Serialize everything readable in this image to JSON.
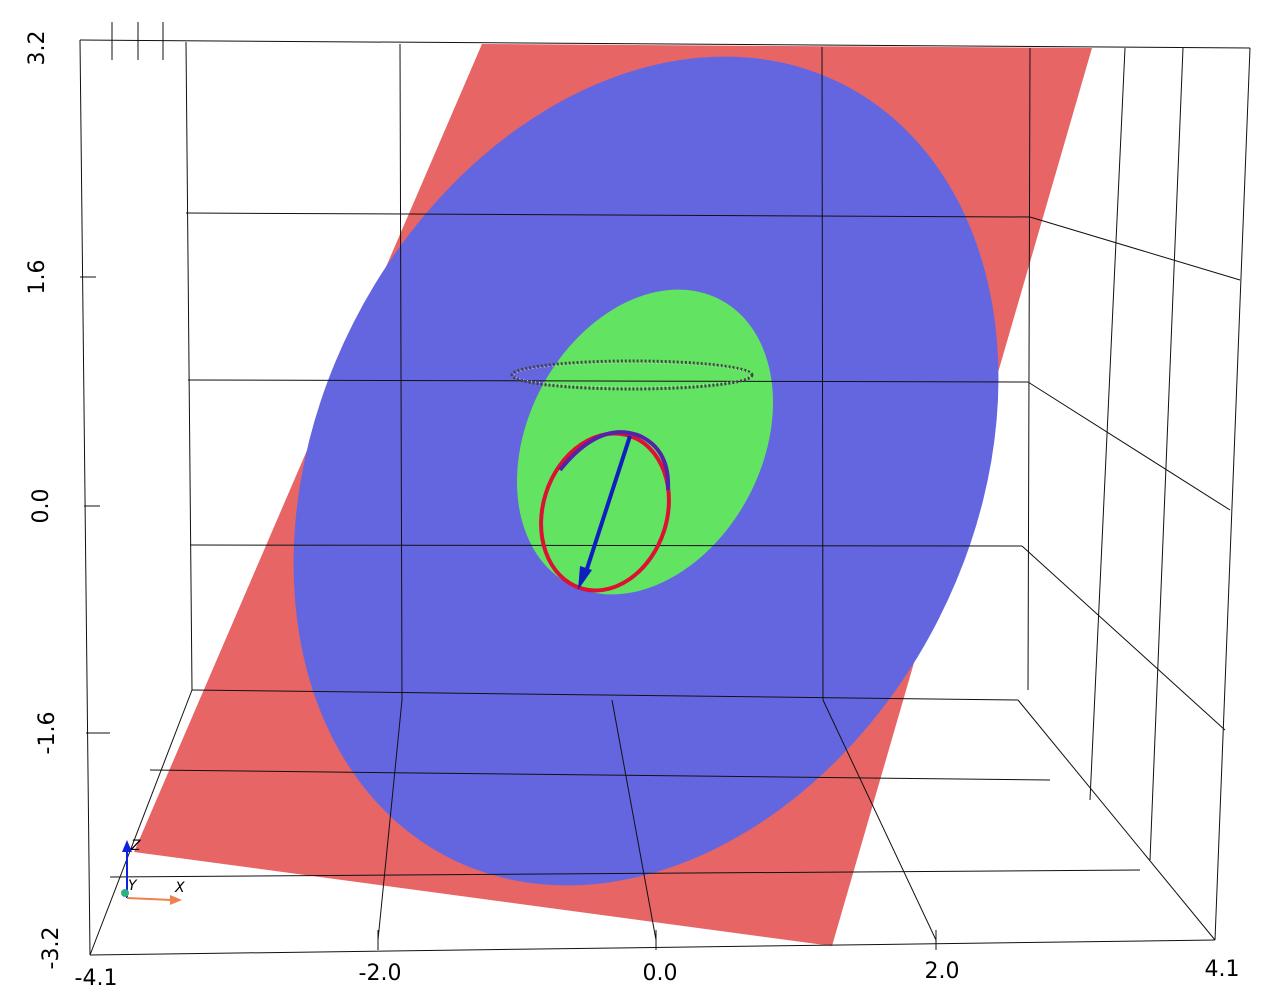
{
  "scene": {
    "x_axis": {
      "ticks": [
        "-4.1",
        "-2.0",
        "0.0",
        "2.0",
        "4.1"
      ]
    },
    "z_axis": {
      "ticks": [
        "3.2",
        "1.6",
        "0.0",
        "-1.6",
        "-3.2"
      ]
    },
    "orientation_triad": {
      "x_label": "X",
      "y_label": "Y",
      "z_label": "Z"
    },
    "colors": {
      "plane": "#e86566",
      "large_ellipse": "#6466e0",
      "small_ellipse": "#62e462",
      "ring": "#dd1133",
      "ring_top": "#5522aa",
      "arrow": "#1020c0",
      "grid": "#111111"
    }
  }
}
